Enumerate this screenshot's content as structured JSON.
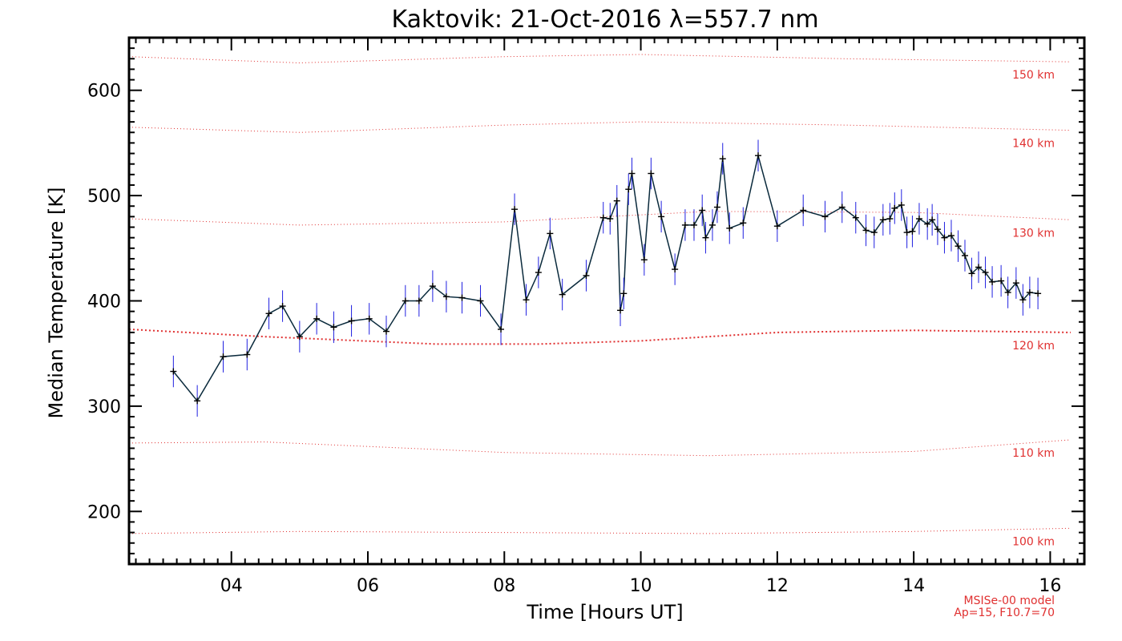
{
  "chart_data": {
    "type": "line",
    "title": "Kaktovik: 21-Oct-2016 λ=557.7 nm",
    "xlabel": "Time [Hours UT]",
    "ylabel": "Median Temperature [K]",
    "xlim": [
      2.5,
      16.5
    ],
    "ylim": [
      150,
      650
    ],
    "xticks": [
      4,
      6,
      8,
      10,
      12,
      14,
      16
    ],
    "xtick_labels": [
      "04",
      "06",
      "08",
      "10",
      "12",
      "14",
      "16"
    ],
    "yticks": [
      200,
      300,
      400,
      500,
      600
    ],
    "ytick_labels": [
      "200",
      "300",
      "400",
      "500",
      "600"
    ],
    "grid": false,
    "series": [
      {
        "x": [
          3.15,
          3.5,
          3.88,
          4.23,
          4.55,
          4.75,
          5.0,
          5.25,
          5.5,
          5.76,
          6.02,
          6.27,
          6.55,
          6.75,
          6.95,
          7.15,
          7.38,
          7.65,
          7.95,
          8.15,
          8.32,
          8.5,
          8.67,
          8.85,
          9.2,
          9.45,
          9.55,
          9.65,
          9.7,
          9.75,
          9.82,
          9.87,
          10.05,
          10.15,
          10.3,
          10.5,
          10.65,
          10.78,
          10.9,
          10.95,
          11.05,
          11.12,
          11.2,
          11.3,
          11.5,
          11.72,
          12.0,
          12.38,
          12.7,
          12.95,
          13.15,
          13.3,
          13.42,
          13.55,
          13.65,
          13.72,
          13.82,
          13.9,
          13.98,
          14.08,
          14.2,
          14.27,
          14.35,
          14.45,
          14.55,
          14.65,
          14.75,
          14.85,
          14.95,
          15.05,
          15.15,
          15.28,
          15.38,
          15.5,
          15.6,
          15.7,
          15.82
        ],
        "y": [
          333,
          305,
          347,
          349,
          388,
          395,
          366,
          383,
          375,
          381,
          383,
          371,
          400,
          400,
          414,
          404,
          403,
          400,
          373,
          487,
          401,
          427,
          464,
          406,
          424,
          479,
          478,
          495,
          391,
          407,
          506,
          521,
          439,
          521,
          480,
          430,
          472,
          472,
          486,
          460,
          472,
          489,
          535,
          469,
          474,
          538,
          471,
          486,
          480,
          489,
          479,
          467,
          465,
          477,
          478,
          488,
          491,
          465,
          466,
          478,
          473,
          477,
          468,
          460,
          462,
          452,
          443,
          426,
          432,
          427,
          418,
          419,
          408,
          417,
          401,
          408,
          407
        ],
        "error_bars": "±15"
      }
    ],
    "model_lines": [
      {
        "label": "100 km",
        "x": [
          2.5,
          5,
          8,
          11,
          14,
          16.3
        ],
        "y": [
          179,
          181,
          180,
          179,
          181,
          184
        ]
      },
      {
        "label": "110 km",
        "x": [
          2.5,
          4.5,
          8,
          11,
          14,
          16.3
        ],
        "y": [
          265,
          266,
          256,
          253,
          257,
          268
        ]
      },
      {
        "label": "120 km",
        "x": [
          2.5,
          4.5,
          7,
          8.5,
          10,
          12,
          14,
          16.3
        ],
        "y": [
          373,
          366,
          359,
          359,
          362,
          370,
          372,
          370
        ]
      },
      {
        "label": "130 km",
        "x": [
          2.5,
          5,
          8,
          11,
          14,
          16.3
        ],
        "y": [
          478,
          472,
          475,
          485,
          484,
          477
        ]
      },
      {
        "label": "140 km",
        "x": [
          2.5,
          5,
          8,
          10,
          13,
          16.3
        ],
        "y": [
          565,
          560,
          567,
          570,
          567,
          562
        ]
      },
      {
        "label": "150 km",
        "x": [
          2.5,
          5,
          8,
          10,
          13,
          16.3
        ],
        "y": [
          632,
          626,
          632,
          634,
          630,
          627
        ]
      }
    ],
    "model_note": [
      "MSISe-00 model",
      "Ap=15, F10.7=70"
    ],
    "colors": {
      "line": "#0a2a3c",
      "error_bars": "#2020e0",
      "markers": "#000000",
      "model": "#e03030",
      "axes": "#000000"
    }
  }
}
